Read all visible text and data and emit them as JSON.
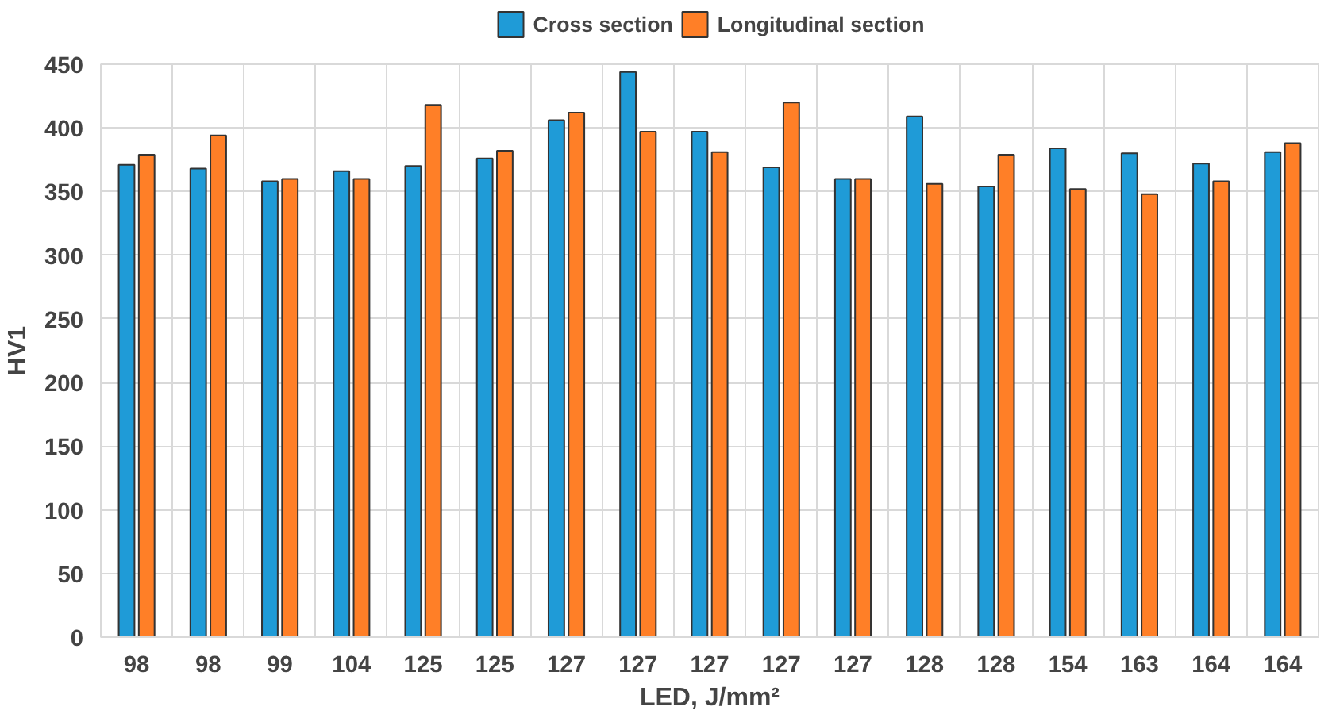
{
  "chart_data": {
    "type": "bar",
    "xlabel": "LED, J/mm²",
    "ylabel": "HV1",
    "categories": [
      "98",
      "98",
      "99",
      "104",
      "125",
      "125",
      "127",
      "127",
      "127",
      "127",
      "127",
      "128",
      "128",
      "154",
      "163",
      "164",
      "164"
    ],
    "series": [
      {
        "name": "Cross section",
        "color": "#1f9bd7",
        "values": [
          371,
          368,
          358,
          366,
          370,
          376,
          406,
          444,
          397,
          369,
          360,
          409,
          354,
          384,
          380,
          372,
          381
        ]
      },
      {
        "name": "Longitudinal section",
        "color": "#ff7f27",
        "values": [
          379,
          394,
          360,
          360,
          418,
          382,
          412,
          397,
          381,
          420,
          360,
          356,
          379,
          352,
          348,
          358,
          388
        ]
      }
    ],
    "ylim": [
      0,
      450
    ],
    "yticks": [
      0,
      50,
      100,
      150,
      200,
      250,
      300,
      350,
      400,
      450
    ],
    "grid": true,
    "legend": "top"
  }
}
